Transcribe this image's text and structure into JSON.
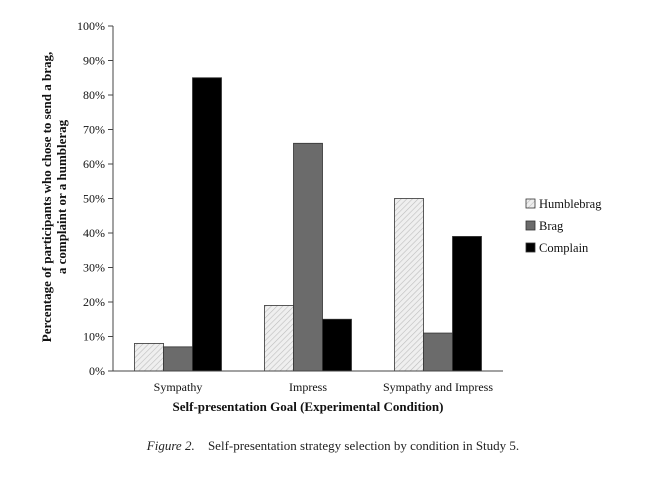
{
  "chart_data": {
    "type": "bar",
    "title": "",
    "categories": [
      "Sympathy",
      "Impress",
      "Sympathy and Impress"
    ],
    "series": [
      {
        "name": "Humblebrag",
        "values": [
          8,
          19,
          50
        ],
        "color": "#ebebeb",
        "pattern": "hatched"
      },
      {
        "name": "Brag",
        "values": [
          7,
          66,
          11
        ],
        "color": "#6b6b6b",
        "pattern": "solid"
      },
      {
        "name": "Complain",
        "values": [
          85,
          15,
          39
        ],
        "color": "#000000",
        "pattern": "solid"
      }
    ],
    "xlabel": "Self-presentation Goal (Experimental Condition)",
    "ylabel_lines": [
      "Percentage of participants who chose to send a brag,",
      "a complaint or a humblerag"
    ],
    "ylim": [
      0,
      100
    ],
    "ytick_step": 10,
    "ytick_labels": [
      "0%",
      "10%",
      "20%",
      "30%",
      "40%",
      "50%",
      "60%",
      "70%",
      "80%",
      "90%",
      "100%"
    ],
    "grid": false,
    "legend_position": "right"
  },
  "caption": {
    "label": "Figure 2.",
    "text": "Self-presentation strategy selection by condition in Study 5."
  }
}
